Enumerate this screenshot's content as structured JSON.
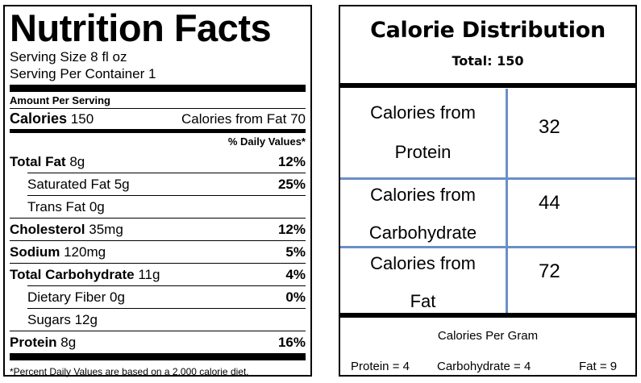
{
  "nutrition": {
    "title": "Nutrition Facts",
    "serving_size": "Serving Size 8 fl oz",
    "servings_per_container": "Serving Per Container 1",
    "amount_per_serving": "Amount Per Serving",
    "calories_label": "Calories",
    "calories_value": "150",
    "calories_from_fat": "Calories from Fat 70",
    "daily_values_header": "% Daily Values*",
    "rows": [
      {
        "name": "Total Fat",
        "amount": "8g",
        "percent": "12%",
        "bold": true
      },
      {
        "name": "Saturated Fat 5g",
        "amount": "",
        "percent": "25%",
        "bold": false
      },
      {
        "name": "Trans Fat 0g",
        "amount": "",
        "percent": "",
        "bold": false
      },
      {
        "name": "Cholesterol",
        "amount": "35mg",
        "percent": "12%",
        "bold": true
      },
      {
        "name": "Sodium",
        "amount": "120mg",
        "percent": "5%",
        "bold": true
      },
      {
        "name": "Total Carbohydrate",
        "amount": "11g",
        "percent": "4%",
        "bold": true
      },
      {
        "name": "Dietary Fiber 0g",
        "amount": "",
        "percent": "0%",
        "bold": false
      },
      {
        "name": "Sugars 12g",
        "amount": "",
        "percent": "",
        "bold": false
      },
      {
        "name": "Protein",
        "amount": "8g",
        "percent": "16%",
        "bold": true
      }
    ],
    "footnote": "*Percent Daily Values are based on a 2,000 calorie diet."
  },
  "distribution": {
    "title": "Calorie Distribution",
    "total": "Total: 150",
    "rows": [
      {
        "label_line1": "Calories from",
        "label_line2": "Protein",
        "value": "32"
      },
      {
        "label_line1": "Calories from",
        "label_line2": "Carbohydrate",
        "value": "44"
      },
      {
        "label_line1": "Calories from",
        "label_line2": "Fat",
        "value": "72"
      }
    ],
    "per_gram_label": "Calories Per Gram",
    "protein_eq": "Protein = 4",
    "carb_eq": "Carbohydrate = 4",
    "fat_eq": "Fat = 9",
    "grid_color": "#6b8fc7"
  }
}
